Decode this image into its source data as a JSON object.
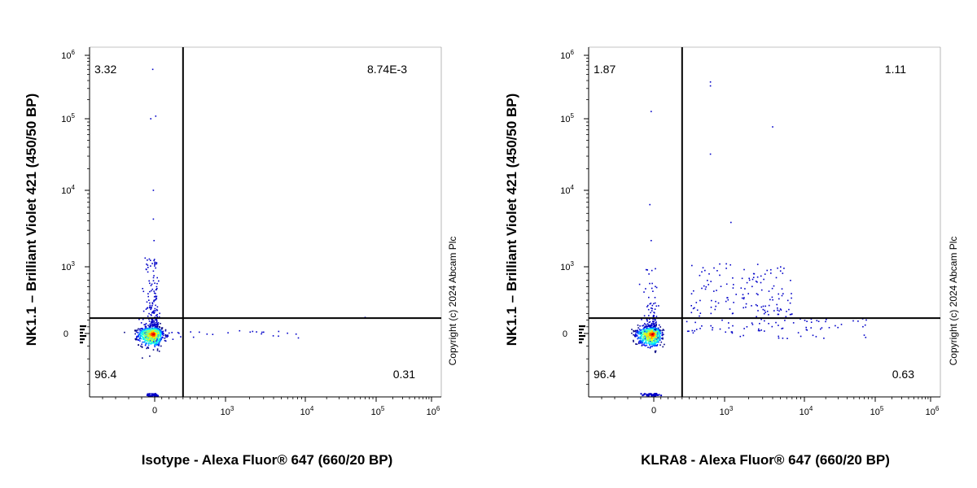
{
  "chart_data": [
    {
      "type": "scatter",
      "subtype": "flow-cytometry-dot-plot",
      "xlabel": "Isotype - Alexa Fluor® 647 (660/20 BP)",
      "ylabel": "NK1.1 – Brilliant Violet 421 (450/50 BP)",
      "x_scale": "biexponential",
      "y_scale": "biexponential",
      "x_ticks": [
        "0",
        "10^3",
        "10^4",
        "10^5",
        "10^6"
      ],
      "y_ticks": [
        "0",
        "10^3",
        "10^4",
        "10^5",
        "10^6"
      ],
      "quadrant_gates": {
        "x": 400,
        "y": 230
      },
      "quadrants": {
        "UL": "3.32",
        "UR": "8.74E-3",
        "LL": "96.4",
        "LR": "0.31"
      },
      "copyright": "Copyright (c) 2024 Abcam Plc",
      "populations": [
        {
          "name": "main",
          "center": [
            -10,
            -5
          ],
          "n": 900
        },
        {
          "name": "vertical-tail",
          "x": -10,
          "y_range": [
            100,
            1300
          ],
          "n": 160
        },
        {
          "name": "horizontal-tail",
          "y": -10,
          "x_range": [
            150,
            10000
          ],
          "n": 30
        }
      ],
      "outliers": [
        [
          -15,
          600000
        ],
        [
          -30,
          100000
        ],
        [
          15,
          110000
        ],
        [
          -10,
          10000
        ],
        [
          -10,
          4200
        ],
        [
          -5,
          2200
        ],
        [
          70000,
          240
        ],
        [
          1500,
          40
        ],
        [
          3000,
          20
        ]
      ]
    },
    {
      "type": "scatter",
      "subtype": "flow-cytometry-dot-plot",
      "xlabel": "KLRA8 - Alexa Fluor® 647 (660/20 BP)",
      "ylabel": "NK1.1 – Brilliant Violet 421 (450/50 BP)",
      "x_scale": "biexponential",
      "y_scale": "biexponential",
      "x_ticks": [
        "0",
        "10^3",
        "10^4",
        "10^5",
        "10^6"
      ],
      "y_ticks": [
        "0",
        "10^3",
        "10^4",
        "10^5",
        "10^6"
      ],
      "quadrant_gates": {
        "x": 400,
        "y": 230
      },
      "quadrants": {
        "UL": "1.87",
        "UR": "1.11",
        "LL": "96.4",
        "LR": "0.63"
      },
      "copyright": "Copyright (c) 2024 Abcam Plc",
      "populations": [
        {
          "name": "main",
          "center": [
            -10,
            -5
          ],
          "n": 900
        },
        {
          "name": "vertical-tail",
          "x": -15,
          "y_range": [
            100,
            1000
          ],
          "n": 90
        },
        {
          "name": "double-positive",
          "x_range": [
            500,
            7000
          ],
          "y_range": [
            250,
            1100
          ],
          "n": 140
        },
        {
          "name": "single-positive",
          "x_range": [
            450,
            80000
          ],
          "y_range": [
            -40,
            220
          ],
          "n": 80
        }
      ],
      "outliers": [
        [
          -20,
          130000
        ],
        [
          -30,
          6500
        ],
        [
          800,
          380000
        ],
        [
          800,
          330000
        ],
        [
          4000,
          77000
        ],
        [
          800,
          32000
        ],
        [
          1200,
          3800
        ],
        [
          -20,
          2200
        ]
      ]
    }
  ]
}
